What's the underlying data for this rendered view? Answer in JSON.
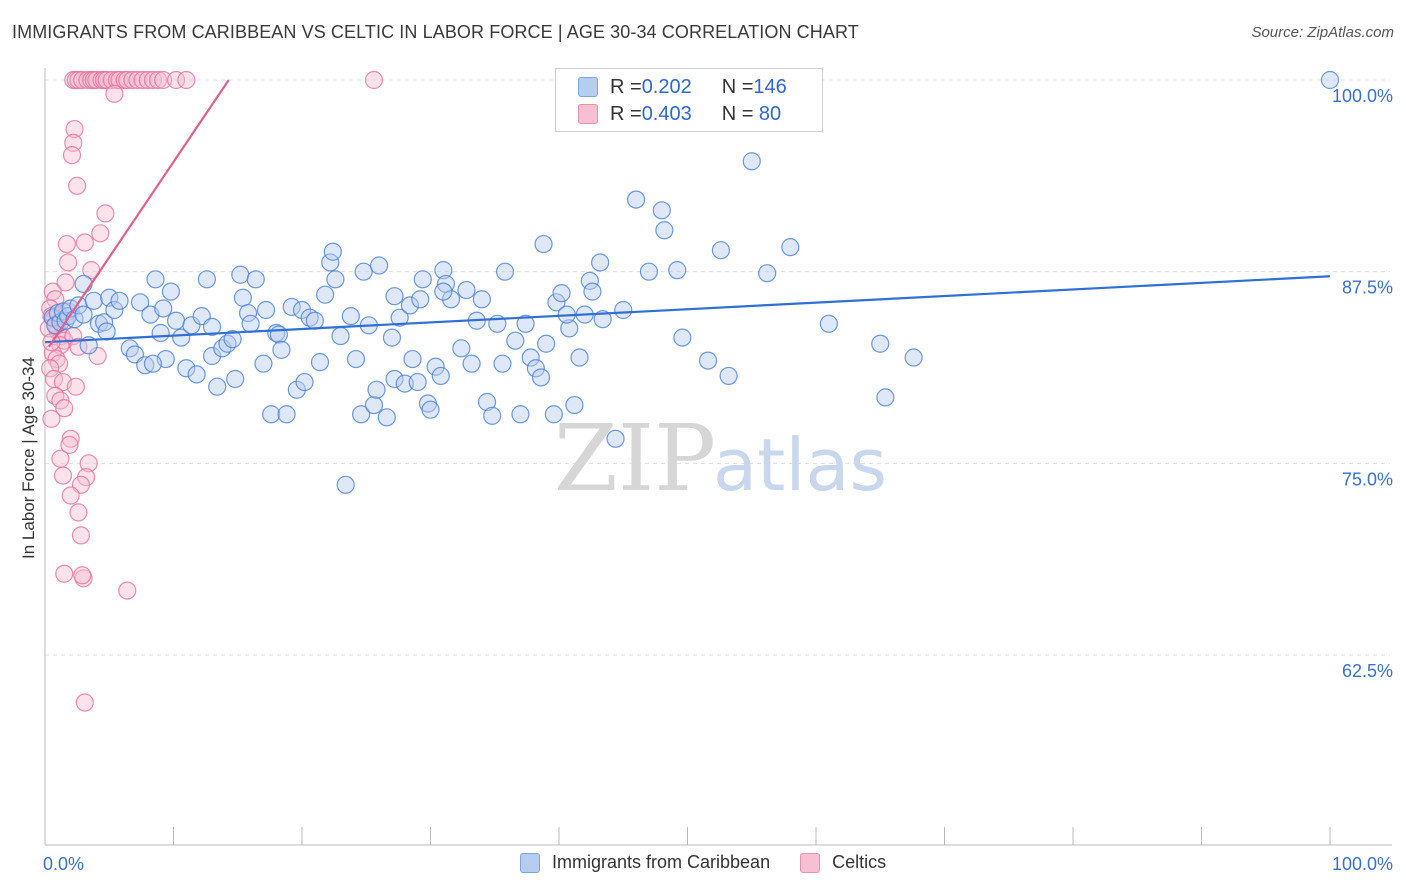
{
  "title": "IMMIGRANTS FROM CARIBBEAN VS CELTIC IN LABOR FORCE | AGE 30-34 CORRELATION CHART",
  "source": "Source: ZipAtlas.com",
  "watermark": {
    "zip": "ZIP",
    "atlas": "atlas"
  },
  "colors": {
    "blue": "#4a7fd6",
    "blue_fill": "#b7cdf0",
    "pink": "#e8709a",
    "pink_fill": "#f6bfd2",
    "axis_text": "#3d6fc8"
  },
  "legend": {
    "rows": [
      {
        "r_label": "R = ",
        "r_value": "0.202",
        "n_label": "N = ",
        "n_value": "146"
      },
      {
        "r_label": "R = ",
        "r_value": "0.403",
        "n_label": "N = ",
        "n_value": " 80"
      }
    ]
  },
  "bottom_legend": [
    "Immigrants from Caribbean",
    "Celtics"
  ],
  "chart_data": {
    "type": "scatter",
    "title": "IMMIGRANTS FROM CARIBBEAN VS CELTIC IN LABOR FORCE | AGE 30-34 CORRELATION CHART",
    "xlabel": "",
    "ylabel": "In Labor Force | Age 30-34",
    "xlim": [
      0,
      100
    ],
    "ylim": [
      51,
      100.5
    ],
    "x_tick_labels": [
      "0.0%",
      "100.0%"
    ],
    "y_ticks": [
      62.5,
      75.0,
      87.5,
      100.0
    ],
    "y_tick_labels": [
      "62.5%",
      "75.0%",
      "87.5%",
      "100.0%"
    ],
    "series": [
      {
        "name": "Immigrants from Caribbean",
        "color": "#4a7fd6",
        "trend": {
          "x": [
            0,
            100
          ],
          "y": [
            82.9,
            87.2
          ]
        },
        "points": [
          [
            0.6,
            84.5
          ],
          [
            0.8,
            84.0
          ],
          [
            1.0,
            84.8
          ],
          [
            1.2,
            84.2
          ],
          [
            1.4,
            84.9
          ],
          [
            1.6,
            84.3
          ],
          [
            1.8,
            84.6
          ],
          [
            2.0,
            85.1
          ],
          [
            2.3,
            84.4
          ],
          [
            2.6,
            85.3
          ],
          [
            3.0,
            84.7
          ],
          [
            3.4,
            82.7
          ],
          [
            3.8,
            85.6
          ],
          [
            4.2,
            84.1
          ],
          [
            4.6,
            84.2
          ],
          [
            5.0,
            85.8
          ],
          [
            5.4,
            85.0
          ],
          [
            5.8,
            85.6
          ],
          [
            6.6,
            82.5
          ],
          [
            7.0,
            82.1
          ],
          [
            7.4,
            85.5
          ],
          [
            7.8,
            81.4
          ],
          [
            8.2,
            84.7
          ],
          [
            8.6,
            87.0
          ],
          [
            9.0,
            83.5
          ],
          [
            9.4,
            81.8
          ],
          [
            9.8,
            86.2
          ],
          [
            10.2,
            84.3
          ],
          [
            10.6,
            83.2
          ],
          [
            11.0,
            81.2
          ],
          [
            11.4,
            84.0
          ],
          [
            11.8,
            80.8
          ],
          [
            12.2,
            84.6
          ],
          [
            12.6,
            87.0
          ],
          [
            13.0,
            82.0
          ],
          [
            13.4,
            80.0
          ],
          [
            13.8,
            82.5
          ],
          [
            14.2,
            82.8
          ],
          [
            14.6,
            83.1
          ],
          [
            14.8,
            80.5
          ],
          [
            15.2,
            87.3
          ],
          [
            15.4,
            85.8
          ],
          [
            15.8,
            84.8
          ],
          [
            16.0,
            84.1
          ],
          [
            16.4,
            87.0
          ],
          [
            17.2,
            85.0
          ],
          [
            17.6,
            78.2
          ],
          [
            18.0,
            83.5
          ],
          [
            18.2,
            83.4
          ],
          [
            18.4,
            82.4
          ],
          [
            18.8,
            78.2
          ],
          [
            19.2,
            85.2
          ],
          [
            19.6,
            79.8
          ],
          [
            20.0,
            85.0
          ],
          [
            20.2,
            80.3
          ],
          [
            20.6,
            84.5
          ],
          [
            21.0,
            84.3
          ],
          [
            21.4,
            81.6
          ],
          [
            21.8,
            86.0
          ],
          [
            22.2,
            88.1
          ],
          [
            22.4,
            88.8
          ],
          [
            22.6,
            87.0
          ],
          [
            23.0,
            83.3
          ],
          [
            23.4,
            73.6
          ],
          [
            23.8,
            84.6
          ],
          [
            24.2,
            81.8
          ],
          [
            24.6,
            78.2
          ],
          [
            24.8,
            87.5
          ],
          [
            25.2,
            84.0
          ],
          [
            25.6,
            78.8
          ],
          [
            25.8,
            79.8
          ],
          [
            26.0,
            87.9
          ],
          [
            26.6,
            78.0
          ],
          [
            27.0,
            83.2
          ],
          [
            27.2,
            80.5
          ],
          [
            27.6,
            84.5
          ],
          [
            28.0,
            80.2
          ],
          [
            28.4,
            85.3
          ],
          [
            28.6,
            81.8
          ],
          [
            29.0,
            80.3
          ],
          [
            29.2,
            85.7
          ],
          [
            29.4,
            87.0
          ],
          [
            29.8,
            78.9
          ],
          [
            30.0,
            78.5
          ],
          [
            30.4,
            81.3
          ],
          [
            30.8,
            80.7
          ],
          [
            31.0,
            87.6
          ],
          [
            31.2,
            86.7
          ],
          [
            31.6,
            85.7
          ],
          [
            32.4,
            82.5
          ],
          [
            32.8,
            86.3
          ],
          [
            33.2,
            81.5
          ],
          [
            33.6,
            84.3
          ],
          [
            34.0,
            85.7
          ],
          [
            34.4,
            79.0
          ],
          [
            34.8,
            78.1
          ],
          [
            35.2,
            84.1
          ],
          [
            35.6,
            81.5
          ],
          [
            35.8,
            87.5
          ],
          [
            37.0,
            78.2
          ],
          [
            37.4,
            84.1
          ],
          [
            37.8,
            81.9
          ],
          [
            38.2,
            81.2
          ],
          [
            38.6,
            80.6
          ],
          [
            38.8,
            89.3
          ],
          [
            39.0,
            82.8
          ],
          [
            39.8,
            85.5
          ],
          [
            39.6,
            78.2
          ],
          [
            40.2,
            86.1
          ],
          [
            40.8,
            83.8
          ],
          [
            40.6,
            84.7
          ],
          [
            41.2,
            78.8
          ],
          [
            41.6,
            81.9
          ],
          [
            42.0,
            84.7
          ],
          [
            42.4,
            86.9
          ],
          [
            42.6,
            86.2
          ],
          [
            43.2,
            88.1
          ],
          [
            43.4,
            84.4
          ],
          [
            44.4,
            76.6
          ],
          [
            46.0,
            92.2
          ],
          [
            47.0,
            87.5
          ],
          [
            48.0,
            91.5
          ],
          [
            48.2,
            90.2
          ],
          [
            49.2,
            87.6
          ],
          [
            49.6,
            83.2
          ],
          [
            51.6,
            81.7
          ],
          [
            52.6,
            88.9
          ],
          [
            53.2,
            80.7
          ],
          [
            55.0,
            94.7
          ],
          [
            56.2,
            87.4
          ],
          [
            58.0,
            89.1
          ],
          [
            61.0,
            84.1
          ],
          [
            65.0,
            82.8
          ],
          [
            65.4,
            79.3
          ],
          [
            67.6,
            81.9
          ],
          [
            100.0,
            100.0
          ],
          [
            31.0,
            86.2
          ],
          [
            36.6,
            83.0
          ],
          [
            45.0,
            85.0
          ],
          [
            27.2,
            85.9
          ],
          [
            13.0,
            83.9
          ],
          [
            8.4,
            81.5
          ],
          [
            4.8,
            83.6
          ],
          [
            3.0,
            86.7
          ],
          [
            9.2,
            85.1
          ],
          [
            17.0,
            81.5
          ]
        ]
      },
      {
        "name": "Celtics",
        "color": "#e8709a",
        "trend": {
          "x": [
            0.3,
            14.3
          ],
          "y": [
            82.6,
            100.0
          ]
        },
        "points": [
          [
            2.2,
            100.0
          ],
          [
            2.4,
            100.0
          ],
          [
            2.6,
            100.0
          ],
          [
            2.9,
            100.0
          ],
          [
            3.3,
            100.0
          ],
          [
            3.6,
            100.0
          ],
          [
            3.8,
            100.0
          ],
          [
            4.0,
            100.0
          ],
          [
            4.4,
            100.0
          ],
          [
            4.6,
            100.0
          ],
          [
            4.8,
            100.0
          ],
          [
            5.2,
            100.0
          ],
          [
            5.6,
            100.0
          ],
          [
            5.8,
            100.0
          ],
          [
            6.2,
            100.0
          ],
          [
            6.4,
            100.0
          ],
          [
            6.8,
            100.0
          ],
          [
            7.2,
            100.0
          ],
          [
            7.6,
            100.0
          ],
          [
            8.0,
            100.0
          ],
          [
            8.4,
            100.0
          ],
          [
            8.8,
            100.0
          ],
          [
            9.2,
            100.0
          ],
          [
            10.2,
            100.0
          ],
          [
            11.0,
            100.0
          ],
          [
            25.6,
            100.0
          ],
          [
            5.4,
            99.1
          ],
          [
            2.3,
            96.8
          ],
          [
            2.2,
            95.9
          ],
          [
            2.1,
            95.1
          ],
          [
            2.5,
            93.1
          ],
          [
            4.7,
            91.3
          ],
          [
            4.3,
            90.0
          ],
          [
            3.1,
            89.4
          ],
          [
            1.7,
            89.3
          ],
          [
            1.8,
            88.1
          ],
          [
            3.6,
            87.6
          ],
          [
            1.6,
            86.8
          ],
          [
            0.6,
            86.2
          ],
          [
            0.8,
            85.7
          ],
          [
            0.4,
            85.1
          ],
          [
            0.5,
            84.6
          ],
          [
            0.7,
            84.4
          ],
          [
            0.9,
            84.0
          ],
          [
            1.0,
            83.6
          ],
          [
            1.3,
            83.3
          ],
          [
            1.5,
            83.0
          ],
          [
            1.2,
            82.7
          ],
          [
            0.6,
            82.2
          ],
          [
            0.9,
            81.8
          ],
          [
            1.1,
            81.5
          ],
          [
            2.2,
            83.3
          ],
          [
            2.6,
            82.6
          ],
          [
            4.1,
            82.0
          ],
          [
            0.4,
            81.2
          ],
          [
            0.7,
            80.5
          ],
          [
            1.4,
            80.3
          ],
          [
            2.4,
            80.0
          ],
          [
            0.8,
            79.4
          ],
          [
            1.2,
            79.1
          ],
          [
            1.5,
            78.6
          ],
          [
            0.5,
            77.9
          ],
          [
            2.0,
            76.6
          ],
          [
            1.9,
            76.2
          ],
          [
            3.4,
            75.0
          ],
          [
            1.2,
            75.3
          ],
          [
            1.4,
            74.2
          ],
          [
            3.2,
            74.1
          ],
          [
            2.8,
            73.6
          ],
          [
            2.0,
            72.9
          ],
          [
            2.6,
            71.8
          ],
          [
            2.8,
            70.3
          ],
          [
            1.5,
            67.8
          ],
          [
            3.0,
            67.5
          ],
          [
            2.9,
            67.7
          ],
          [
            6.4,
            66.7
          ],
          [
            3.1,
            59.4
          ],
          [
            1.8,
            84.9
          ],
          [
            0.3,
            83.8
          ],
          [
            0.5,
            82.9
          ]
        ]
      }
    ]
  }
}
